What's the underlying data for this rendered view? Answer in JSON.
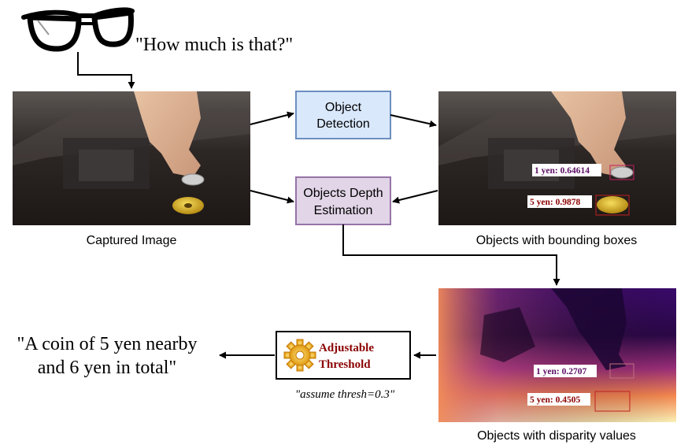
{
  "question": "\"How much is that?\"",
  "captions": {
    "captured": "Captured Image",
    "bboxes": "Objects with bounding boxes",
    "disparity": "Objects with disparity values"
  },
  "boxes": {
    "detection_line1": "Object",
    "detection_line2": "Detection",
    "depth_line1": "Objects Depth",
    "depth_line2": "Estimation",
    "threshold_line1": "Adjustable",
    "threshold_line2": "Threshold"
  },
  "threshold_note": "\"assume thresh=0.3\"",
  "answer": {
    "line1": "\"A coin of 5 yen nearby",
    "line2": "and 6 yen in total\""
  },
  "detections": {
    "one_yen": "1 yen: 0.64614",
    "five_yen": "5 yen: 0.9878"
  },
  "disparities": {
    "one_yen": "1 yen: 0.2707",
    "five_yen": "5 yen: 0.4505"
  },
  "colors": {
    "detection_fill": "#dae8fc",
    "detection_stroke": "#6c8ebf",
    "depth_fill": "#e1d5e7",
    "depth_stroke": "#9673a6",
    "one_yen_tag": "#5b0d63",
    "five_yen_tag": "#8b0000",
    "threshold_text": "#8b0000"
  }
}
